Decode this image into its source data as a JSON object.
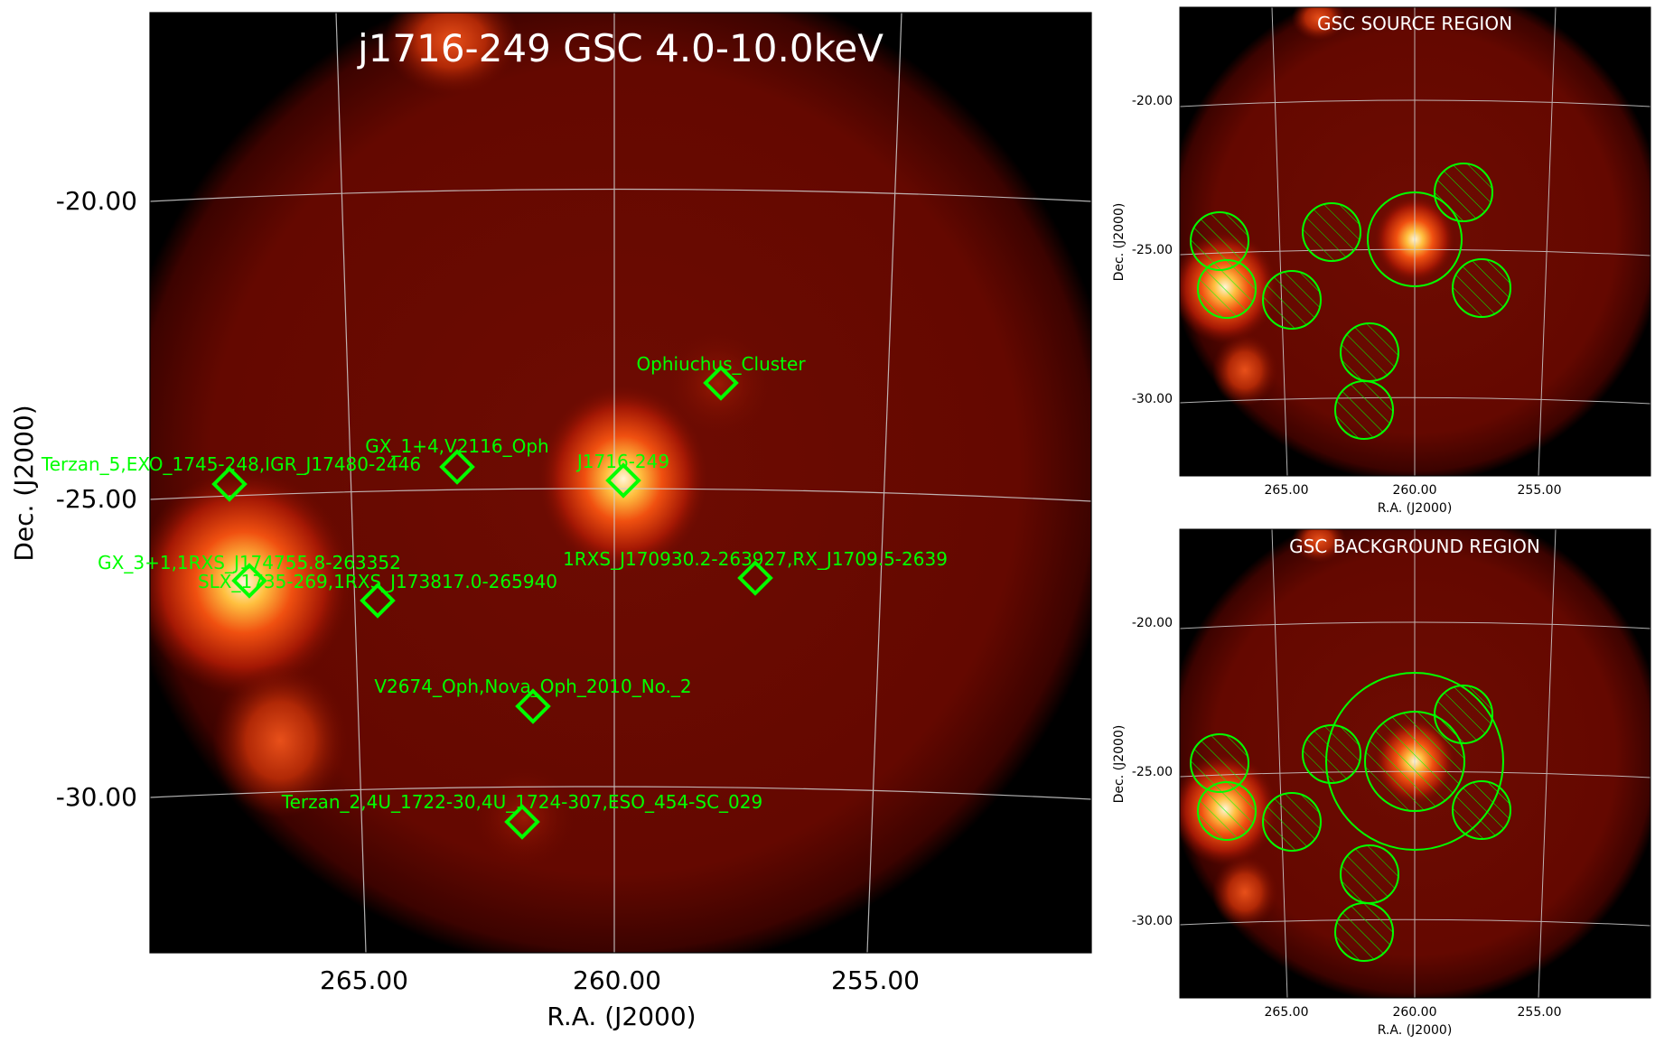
{
  "main_panel": {
    "title": "j1716-249 GSC 4.0-10.0keV",
    "xlabel": "R.A. (J2000)",
    "ylabel": "Dec. (J2000)",
    "x_ticks": [
      "265.00",
      "260.00",
      "255.00"
    ],
    "y_ticks": [
      "-20.00",
      "-25.00",
      "-30.00"
    ],
    "sources": [
      {
        "label": "Ophiuchus_Cluster"
      },
      {
        "label": "GX_1+4,V2116_Oph"
      },
      {
        "label": "Terzan_5,EXO_1745-248,IGR_J17480-2446"
      },
      {
        "label": "J1716-249"
      },
      {
        "label": "1RXS_J170930.2-263927,RX_J1709.5-2639"
      },
      {
        "label": "GX_3+1,1RXS_J174755.8-263352"
      },
      {
        "label": "SLX_1735-269,1RXS_J173817.0-265940"
      },
      {
        "label": "V2674_Oph,Nova_Oph_2010_No._2"
      },
      {
        "label": "Terzan_2,4U_1722-30,4U_1724-307,ESO_454-SC_029"
      }
    ]
  },
  "source_panel": {
    "title": "GSC SOURCE REGION",
    "xlabel": "R.A. (J2000)",
    "ylabel": "Dec. (J2000)",
    "x_ticks": [
      "265.00",
      "260.00",
      "255.00"
    ],
    "y_ticks": [
      "-20.00",
      "-25.00",
      "-30.00"
    ]
  },
  "background_panel": {
    "title": "GSC BACKGROUND REGION",
    "xlabel": "R.A. (J2000)",
    "ylabel": "Dec. (J2000)",
    "x_ticks": [
      "265.00",
      "260.00",
      "255.00"
    ],
    "y_ticks": [
      "-20.00",
      "-25.00",
      "-30.00"
    ]
  },
  "colors": {
    "marker": "#00ff00",
    "grid": "#d0d0d0",
    "sky": "#6e0a00"
  }
}
